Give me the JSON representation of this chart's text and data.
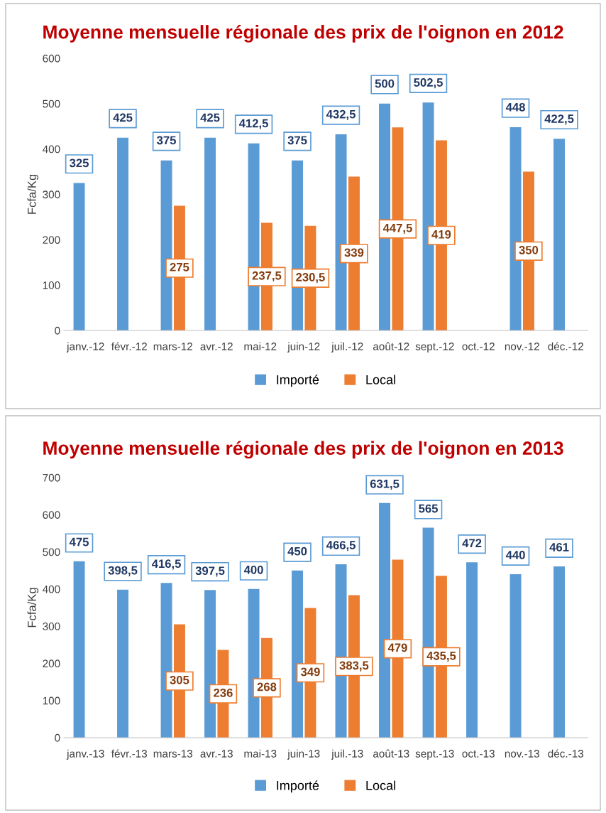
{
  "chart_data": [
    {
      "type": "bar",
      "title": "Moyenne mensuelle régionale des prix de l'oignon en 2012",
      "ylabel": "Fcfa/Kg",
      "categories": [
        "janv.-12",
        "févr.-12",
        "mars-12",
        "avr.-12",
        "mai-12",
        "juin-12",
        "juil.-12",
        "août-12",
        "sept.-12",
        "oct.-12",
        "nov.-12",
        "déc.-12"
      ],
      "series": [
        {
          "name": "Importé",
          "color": "#5b9bd5",
          "values": [
            325,
            425,
            375,
            425,
            412.5,
            375,
            432.5,
            500,
            502.5,
            null,
            448,
            422.5
          ],
          "value_labels": [
            "325",
            "425",
            "375",
            "425",
            "412,5",
            "375",
            "432,5",
            "500",
            "502,5",
            null,
            "448",
            "422,5"
          ]
        },
        {
          "name": "Local",
          "color": "#ed7d31",
          "values": [
            null,
            null,
            275,
            null,
            237.5,
            230.5,
            339,
            447.5,
            419,
            null,
            350,
            null
          ],
          "value_labels": [
            null,
            null,
            "275",
            null,
            "237,5",
            "230,5",
            "339",
            "447,5",
            "419",
            null,
            "350",
            null
          ]
        }
      ],
      "ylim": [
        0,
        600
      ],
      "yticks": [
        0,
        100,
        200,
        300,
        400,
        500,
        600
      ],
      "grid": false,
      "legend": "bottom"
    },
    {
      "type": "bar",
      "title": "Moyenne mensuelle régionale des prix de l'oignon en 2013",
      "ylabel": "Fcfa/Kg",
      "categories": [
        "janv.-13",
        "févr.-13",
        "mars-13",
        "avr.-13",
        "mai-13",
        "juin-13",
        "juil.-13",
        "août-13",
        "sept.-13",
        "oct.-13",
        "nov.-13",
        "déc.-13"
      ],
      "series": [
        {
          "name": "Importé",
          "color": "#5b9bd5",
          "values": [
            475,
            398.5,
            416.5,
            397.5,
            400,
            450,
            466.5,
            631.5,
            565,
            472,
            440,
            461
          ],
          "value_labels": [
            "475",
            "398,5",
            "416,5",
            "397,5",
            "400",
            "450",
            "466,5",
            "631,5",
            "565",
            "472",
            "440",
            "461"
          ]
        },
        {
          "name": "Local",
          "color": "#ed7d31",
          "values": [
            null,
            null,
            305,
            236,
            268,
            349,
            383.5,
            479,
            435.5,
            null,
            null,
            null
          ],
          "value_labels": [
            null,
            null,
            "305",
            "236",
            "268",
            "349",
            "383,5",
            "479",
            "435,5",
            null,
            null,
            null
          ]
        }
      ],
      "ylim": [
        0,
        700
      ],
      "yticks": [
        0,
        100,
        200,
        300,
        400,
        500,
        600,
        700
      ],
      "grid": false,
      "legend": "bottom"
    }
  ]
}
